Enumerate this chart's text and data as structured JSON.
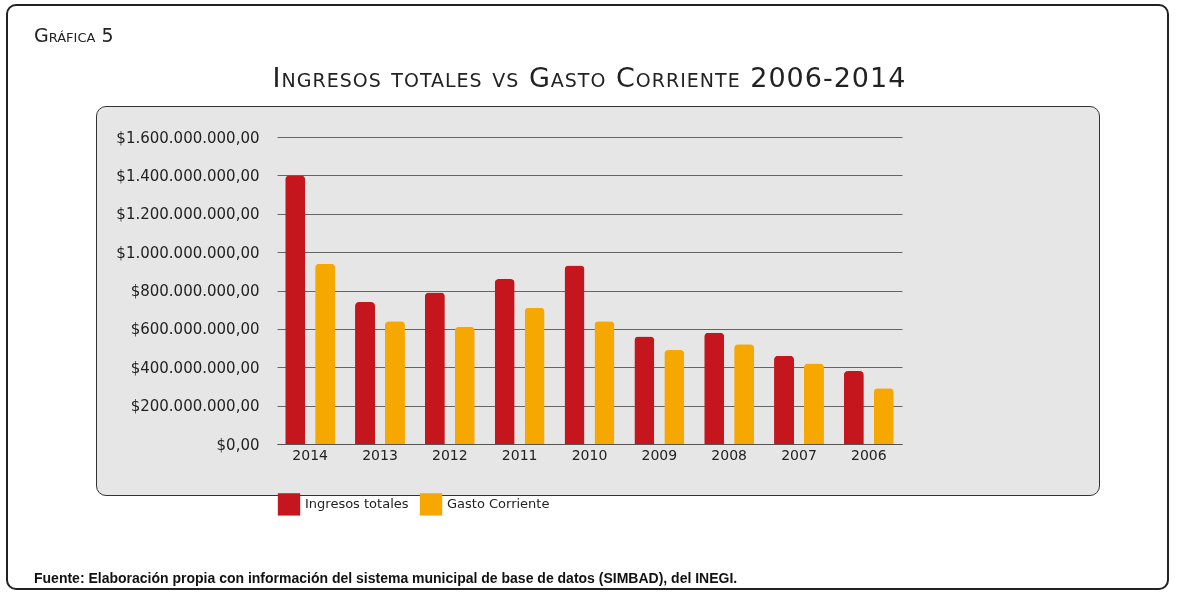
{
  "chart_data": {
    "type": "bar",
    "subtitle": "Gráfica 5",
    "title": "Ingresos totales vs Gasto Corriente 2006-2014",
    "categories": [
      "2014",
      "2013",
      "2012",
      "2011",
      "2010",
      "2009",
      "2008",
      "2007",
      "2006"
    ],
    "series": [
      {
        "name": "Ingresos totales",
        "color": "#c4161c",
        "values": [
          1400000000,
          740000000,
          790000000,
          860000000,
          930000000,
          560000000,
          580000000,
          460000000,
          380000000
        ]
      },
      {
        "name": "Gasto Corriente",
        "color": "#f7a800",
        "values": [
          940000000,
          640000000,
          610000000,
          710000000,
          640000000,
          490000000,
          520000000,
          420000000,
          290000000
        ]
      }
    ],
    "ylim": [
      0,
      1600000000
    ],
    "yticks": [
      {
        "value": 0,
        "label": "$0,00"
      },
      {
        "value": 200000000,
        "label": "$200.000.000,00"
      },
      {
        "value": 400000000,
        "label": "$400.000.000,00"
      },
      {
        "value": 600000000,
        "label": "$600.000.000,00"
      },
      {
        "value": 800000000,
        "label": "$800.000.000,00"
      },
      {
        "value": 1000000000,
        "label": "$1.000.000.000,00"
      },
      {
        "value": 1200000000,
        "label": "$1.200.000.000,00"
      },
      {
        "value": 1400000000,
        "label": "$1.400.000.000,00"
      },
      {
        "value": 1600000000,
        "label": "$1.600.000.000,00"
      }
    ],
    "grid": "y",
    "legend": "bottom",
    "annotations": [
      "Fuente: Elaboración propia con información del sistema municipal de base de datos (SIMBAD), del INEGI."
    ]
  }
}
